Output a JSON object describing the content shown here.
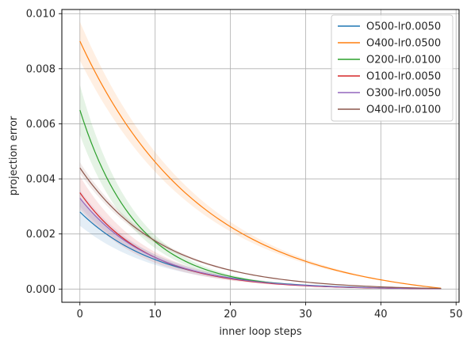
{
  "chart_data": {
    "type": "line",
    "title": "",
    "xlabel": "inner loop steps",
    "ylabel": "projection error",
    "xlim": [
      -2.4,
      50.4
    ],
    "ylim": [
      -0.00048,
      0.01015
    ],
    "xticks": [
      0,
      10,
      20,
      30,
      40,
      50
    ],
    "xtick_labels": [
      "0",
      "10",
      "20",
      "30",
      "40",
      "50"
    ],
    "yticks": [
      0.0,
      0.002,
      0.004,
      0.006,
      0.008,
      0.01
    ],
    "ytick_labels": [
      "0.000",
      "0.002",
      "0.004",
      "0.006",
      "0.008",
      "0.010"
    ],
    "grid": true,
    "legend_position": "top-right",
    "x_range": [
      0,
      48
    ],
    "series": [
      {
        "name": "O500-lr0.0050",
        "color": "#1f77b4",
        "start": 0.0028,
        "end": 1e-05,
        "decay_tau": 10.5,
        "band_start": 0.0005
      },
      {
        "name": "O400-lr0.0500",
        "color": "#ff7f0e",
        "start": 0.009,
        "end": 3e-05,
        "decay_tau": 16.0,
        "band_start": 0.0007
      },
      {
        "name": "O200-lr0.0100",
        "color": "#2ca02c",
        "start": 0.0065,
        "end": 2e-05,
        "decay_tau": 7.5,
        "band_start": 0.0009
      },
      {
        "name": "O100-lr0.0050",
        "color": "#d62728",
        "start": 0.0035,
        "end": 1e-05,
        "decay_tau": 9.0,
        "band_start": 0.0006
      },
      {
        "name": "O300-lr0.0050",
        "color": "#9467bd",
        "start": 0.0033,
        "end": 1e-05,
        "decay_tau": 9.5,
        "band_start": 0.0003
      },
      {
        "name": "O400-lr0.0100",
        "color": "#8c564b",
        "start": 0.0044,
        "end": 2e-05,
        "decay_tau": 11.0,
        "band_start": 0.0002
      }
    ]
  }
}
